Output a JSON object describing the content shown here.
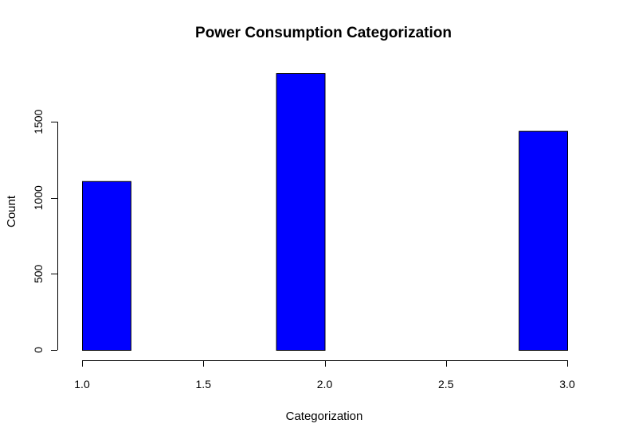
{
  "chart_data": {
    "type": "bar",
    "title": "Power Consumption Categorization",
    "xlabel": "Categorization",
    "ylabel": "Count",
    "bins": [
      {
        "start": 1.0,
        "end": 1.2,
        "count": 1110
      },
      {
        "start": 1.8,
        "end": 2.0,
        "count": 1820
      },
      {
        "start": 2.8,
        "end": 3.0,
        "count": 1440
      }
    ],
    "xlim": [
      1.0,
      3.0
    ],
    "ylim": [
      0,
      1820
    ],
    "x_ticks": [
      1.0,
      1.5,
      2.0,
      2.5,
      3.0
    ],
    "x_tick_labels": [
      "1.0",
      "1.5",
      "2.0",
      "2.5",
      "3.0"
    ],
    "y_ticks": [
      0,
      500,
      1000,
      1500
    ],
    "y_tick_labels": [
      "0",
      "500",
      "1000",
      "1500"
    ],
    "bar_color": "#0000ff",
    "bar_border_color": "#000000",
    "grid": false,
    "legend": "none"
  }
}
